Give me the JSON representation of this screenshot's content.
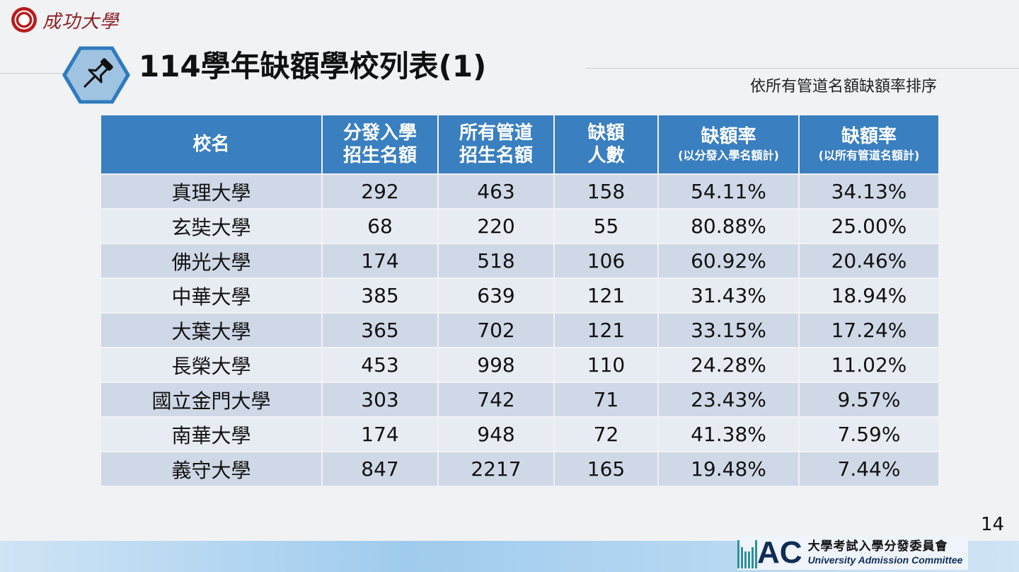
{
  "logo": {
    "name": "成功大學"
  },
  "header": {
    "title": "114學年缺額學校列表(1)",
    "subtitle": "依所有管道名額缺額率排序"
  },
  "table": {
    "headers": [
      {
        "line1": "校名",
        "line2": "",
        "note": ""
      },
      {
        "line1": "分發入學",
        "line2": "招生名額",
        "note": ""
      },
      {
        "line1": "所有管道",
        "line2": "招生名額",
        "note": ""
      },
      {
        "line1": "缺額",
        "line2": "人數",
        "note": ""
      },
      {
        "line1": "缺額率",
        "line2": "",
        "note": "(以分發入學名額計)"
      },
      {
        "line1": "缺額率",
        "line2": "",
        "note": "(以所有管道名額計)"
      }
    ],
    "rows": [
      [
        "真理大學",
        "292",
        "463",
        "158",
        "54.11%",
        "34.13%"
      ],
      [
        "玄奘大學",
        "68",
        "220",
        "55",
        "80.88%",
        "25.00%"
      ],
      [
        "佛光大學",
        "174",
        "518",
        "106",
        "60.92%",
        "20.46%"
      ],
      [
        "中華大學",
        "385",
        "639",
        "121",
        "31.43%",
        "18.94%"
      ],
      [
        "大葉大學",
        "365",
        "702",
        "121",
        "33.15%",
        "17.24%"
      ],
      [
        "長榮大學",
        "453",
        "998",
        "110",
        "24.28%",
        "11.02%"
      ],
      [
        "國立金門大學",
        "303",
        "742",
        "71",
        "23.43%",
        "9.57%"
      ],
      [
        "南華大學",
        "174",
        "948",
        "72",
        "41.38%",
        "7.59%"
      ],
      [
        "義守大學",
        "847",
        "2217",
        "165",
        "19.48%",
        "7.44%"
      ]
    ]
  },
  "page_number": "14",
  "footer": {
    "logo_letters": "AC",
    "org_zh": "大學考試入學分發委員會",
    "org_en": "University Admission Committee"
  },
  "colors": {
    "header_blue": "#3a7fbf",
    "row_dark": "#cfd8e6",
    "row_light": "#e7ecf3",
    "logo_red": "#8a1f24"
  },
  "icons": [
    "university-seal-icon",
    "pushpin-icon",
    "uac-logo-icon"
  ]
}
